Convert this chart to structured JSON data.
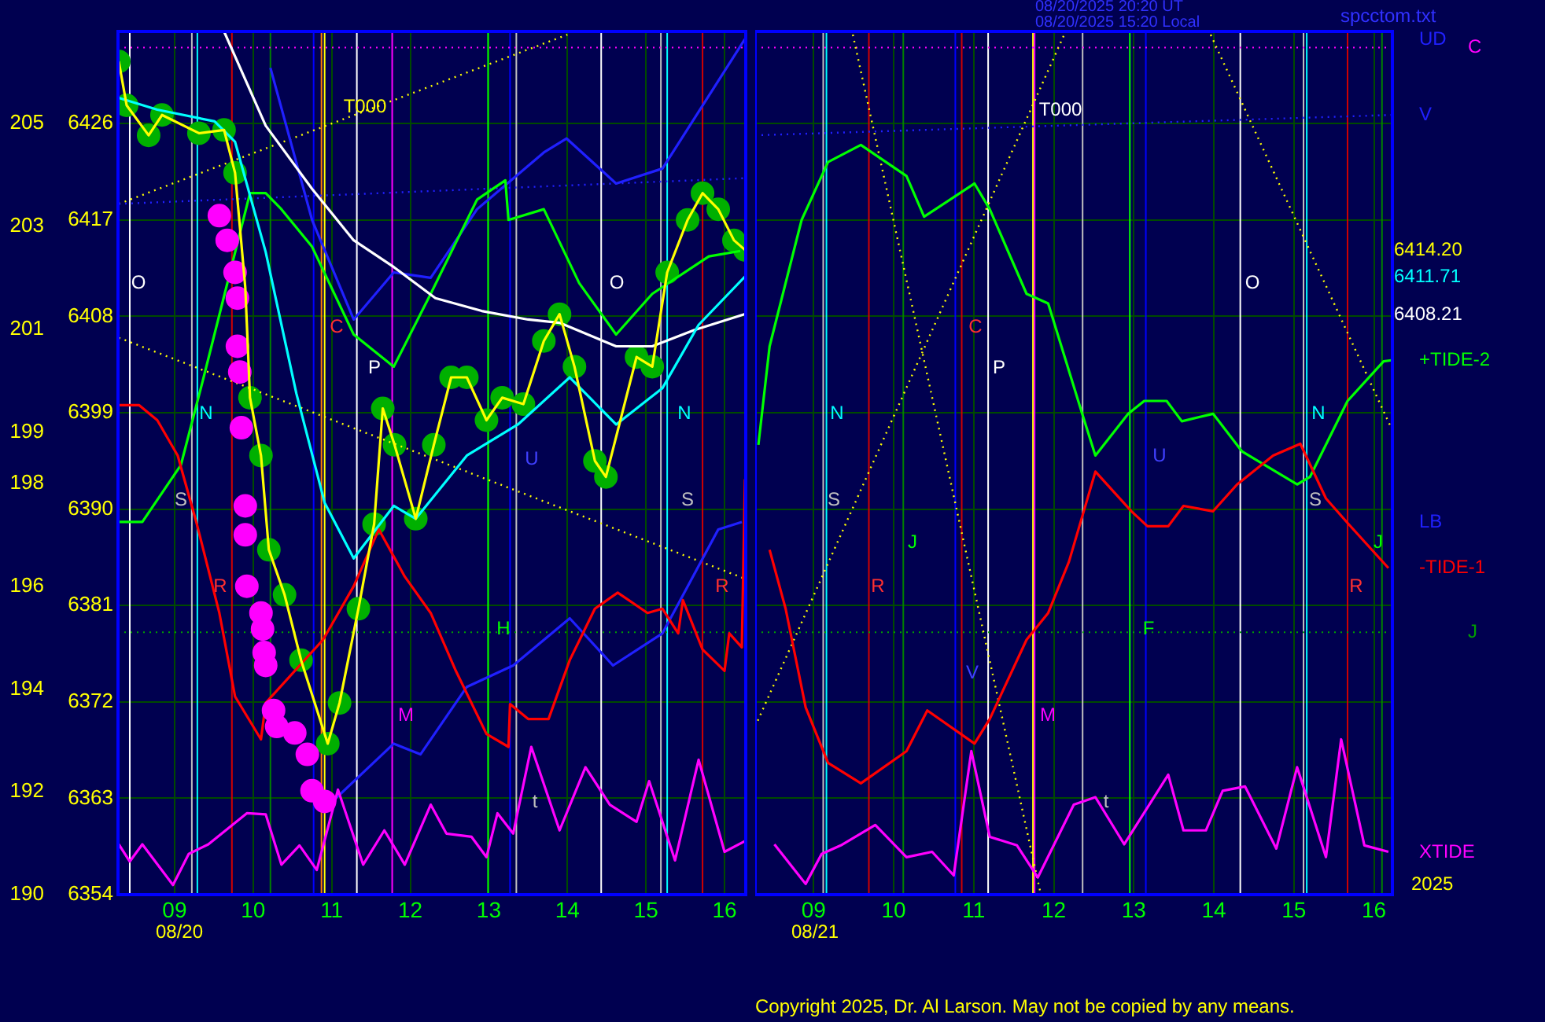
{
  "chart_data": [
    {
      "type": "line",
      "xlim": [
        8.28,
        16.27
      ],
      "ylim": [
        6354,
        6434.6
      ],
      "y2lim": [
        190,
        206.79
      ],
      "xticks": [
        {
          "value": 9,
          "label": "09"
        },
        {
          "value": 10,
          "label": "10"
        },
        {
          "value": 11,
          "label": "11"
        },
        {
          "value": 12,
          "label": "12"
        },
        {
          "value": 13,
          "label": "13"
        },
        {
          "value": 14,
          "label": "14"
        },
        {
          "value": 15,
          "label": "15"
        },
        {
          "value": 16,
          "label": "16"
        }
      ],
      "yticks": [
        6354,
        6363,
        6372,
        6381,
        6390,
        6399,
        6408,
        6417,
        6426
      ],
      "y2ticks": [
        190,
        192,
        194,
        196,
        198,
        199,
        201,
        203,
        205
      ],
      "grid": true,
      "series": [
        {
          "type": "scatter",
          "marker": "circle",
          "color": "#00b000",
          "x": [
            8.29,
            8.39,
            8.67,
            8.84,
            9.31,
            9.63,
            9.77,
            9.9,
            9.96,
            10.1,
            10.2,
            10.4,
            10.61,
            10.95,
            11.1,
            11.34,
            11.54,
            11.65,
            11.8,
            12.07,
            12.3,
            12.52,
            12.72,
            12.97,
            13.17,
            13.44,
            13.7,
            13.9,
            14.09,
            14.35,
            14.49,
            14.88,
            15.08,
            15.27,
            15.53,
            15.72,
            15.92,
            16.12,
            16.26
          ],
          "values": [
            6431.8,
            6427.7,
            6424.9,
            6426.8,
            6425.1,
            6425.4,
            6421.4,
            null,
            6400.4,
            6395,
            6386.2,
            6382,
            6375.9,
            6368.1,
            6371.9,
            6380.7,
            6388.6,
            6399.4,
            6396,
            6389.1,
            6396,
            6402.3,
            6402.3,
            6398.3,
            6400.4,
            6399.8,
            6405.7,
            6408.2,
            6403.3,
            6394.5,
            6393,
            6404.2,
            6403.3,
            6412.1,
            6417,
            6419.5,
            6418,
            6415.1,
            6414.2
          ]
        },
        {
          "marker": "none",
          "line_style": "dotted",
          "color": "#ffff00",
          "x": [
            8.29,
            14.0
          ],
          "values": [
            6418.5,
            6434.3
          ]
        },
        {
          "marker": "none",
          "line_style": "dotted",
          "color": "#ffff00",
          "x": [
            8.29,
            16.26
          ],
          "values": [
            6406,
            6383.5
          ]
        },
        {
          "marker": "none",
          "line_style": "dotted",
          "color": "#2020ff",
          "x": [
            8.29,
            16.26
          ],
          "values": [
            6418.5,
            6420.9
          ]
        },
        {
          "marker": "none",
          "color": "#2020ff",
          "name": "UD",
          "x": [
            10.22,
            10.75,
            11.28,
            11.79,
            12.26,
            12.85,
            13.7,
            13.99,
            14.62,
            15.21,
            16.26
          ],
          "values": [
            6431.2,
            6417,
            6407.7,
            6412.1,
            6411.6,
            6418,
            6423.3,
            6424.6,
            6420.4,
            6421.8,
            6433.9
          ]
        },
        {
          "marker": "none",
          "color": "#2020ff",
          "name": "LB",
          "x": [
            11.01,
            11.79,
            12.13,
            12.72,
            13.31,
            14.03,
            14.58,
            15.21,
            15.92,
            16.22
          ],
          "values": [
            6362.7,
            6368.1,
            6367.1,
            6373.4,
            6375.4,
            6379.8,
            6375.4,
            6378.4,
            6388.1,
            6388.8
          ]
        },
        {
          "marker": "none",
          "color": "#00ff00",
          "x": [
            8.29,
            8.59,
            9.08,
            9.37,
            9.96,
            10.16,
            10.36,
            10.75,
            11.28,
            11.79,
            12.26,
            12.85,
            13.21,
            13.25,
            13.7,
            14.15,
            14.62,
            15.08,
            15.8,
            16.2
          ],
          "values": [
            6388.8,
            6388.8,
            6394.1,
            6402.3,
            6419.5,
            6419.5,
            6418,
            6414.5,
            6406.3,
            6403.3,
            6410.1,
            6418.9,
            6420.7,
            6417,
            6418,
            6411.1,
            6406.3,
            6410.1,
            6413.6,
            6414.1
          ]
        },
        {
          "marker": "none",
          "color": "#ff0000",
          "x": [
            8.29,
            8.55,
            8.78,
            9.04,
            9.28,
            9.57,
            9.77,
            10.1,
            10.16,
            10.89,
            11.28,
            11.6,
            11.93,
            12.26,
            12.58,
            12.97,
            13.25,
            13.27,
            13.5,
            13.76,
            14.03,
            14.35,
            14.64,
            15.02,
            15.21,
            15.41,
            15.47,
            15.72,
            16.0,
            16.06,
            16.22,
            16.26
          ],
          "values": [
            6399.7,
            6399.7,
            6398.3,
            6395,
            6388.7,
            6380.3,
            6372.5,
            6368.5,
            6371.9,
            6377.8,
            6382.8,
            6388.1,
            6383.7,
            6380.3,
            6374.9,
            6369,
            6367.8,
            6371.8,
            6370.4,
            6370.4,
            6375.9,
            6380.7,
            6382.2,
            6380.3,
            6380.7,
            6378.4,
            6381.5,
            6376.9,
            6374.9,
            6378.4,
            6377.1,
            6392.8
          ]
        },
        {
          "marker": "none",
          "color": "#ff00ff",
          "x": [
            8.29,
            8.43,
            8.59,
            8.98,
            9.18,
            9.43,
            9.92,
            10.16,
            10.36,
            10.59,
            10.81,
            11.08,
            11.4,
            11.67,
            11.93,
            12.26,
            12.46,
            12.78,
            12.97,
            13.11,
            13.31,
            13.54,
            13.9,
            14.23,
            14.54,
            14.88,
            15.04,
            15.37,
            15.67,
            16.0,
            16.26
          ],
          "values": [
            6358.7,
            6357.1,
            6358.7,
            6354.9,
            6357.8,
            6358.7,
            6361.6,
            6361.5,
            6356.8,
            6358.6,
            6356.3,
            6363.8,
            6356.8,
            6360,
            6356.8,
            6362.4,
            6359.7,
            6359.4,
            6357.5,
            6361.6,
            6359.7,
            6367.8,
            6360,
            6365.9,
            6362.4,
            6360.8,
            6364.6,
            6357.2,
            6366.6,
            6358,
            6359
          ]
        },
        {
          "type": "scatter",
          "marker": "circle",
          "color": "#ff00ff",
          "x": [
            9.57,
            9.67,
            9.77,
            9.8,
            9.8,
            9.83,
            9.85,
            9.9,
            9.9,
            9.92,
            10.1,
            10.12,
            10.14,
            10.16,
            10.26,
            10.3,
            10.53,
            10.69,
            10.75,
            10.91
          ],
          "values": [
            6417.4,
            6415.1,
            6412.1,
            6409.7,
            6405.2,
            6402.8,
            6397.6,
            6390.3,
            6387.6,
            6382.8,
            6380.3,
            6378.8,
            6376.6,
            6375.4,
            6371.2,
            6369.7,
            6369.1,
            6367.1,
            6363.7,
            6362.7
          ]
        },
        {
          "marker": "none",
          "color": "#ffffff",
          "x": [
            9.63,
            10.16,
            10.75,
            11.28,
            11.79,
            12.32,
            12.91,
            13.5,
            13.9,
            14.62,
            15.08,
            15.61,
            16.26
          ],
          "values": [
            6434.6,
            6425.8,
            6419.9,
            6415.1,
            6412.6,
            6409.7,
            6408.5,
            6407.7,
            6407.4,
            6405.2,
            6405.2,
            6406.7,
            6408.21
          ]
        },
        {
          "marker": "none",
          "color": "#00ffff",
          "x": [
            8.29,
            8.78,
            9.51,
            9.77,
            10.16,
            10.55,
            10.91,
            11.28,
            11.79,
            12.07,
            12.72,
            13.37,
            14.03,
            14.62,
            15.21,
            15.67,
            16.26
          ],
          "values": [
            6428.4,
            6427.3,
            6426.2,
            6424.3,
            6414,
            6400.8,
            6390.6,
            6385.4,
            6390.3,
            6389.1,
            6395,
            6397.9,
            6402.3,
            6397.9,
            6401.3,
            6407.2,
            6411.71
          ]
        },
        {
          "marker": "none",
          "color": "#ffff00",
          "x": [
            8.29,
            8.39,
            8.67,
            8.84,
            9.31,
            9.63,
            9.77,
            9.9,
            9.96,
            10.1,
            10.2,
            10.4,
            10.61,
            10.95,
            11.1,
            11.34,
            11.54,
            11.65,
            11.8,
            12.07,
            12.3,
            12.52,
            12.72,
            12.97,
            13.17,
            13.44,
            13.7,
            13.9,
            14.09,
            14.35,
            14.49,
            14.88,
            15.08,
            15.27,
            15.53,
            15.72,
            15.92,
            16.12,
            16.26
          ],
          "values": [
            6431.8,
            6427.7,
            6424.9,
            6426.8,
            6425.1,
            6425.4,
            6421.4,
            6410.7,
            6400.4,
            6395,
            6386.2,
            6382,
            6375.9,
            6368.1,
            6371.9,
            6380.7,
            6388.6,
            6399.4,
            6396,
            6389.1,
            6396,
            6402.3,
            6402.3,
            6398.3,
            6400.4,
            6399.8,
            6405.7,
            6408.2,
            6403.3,
            6394.5,
            6393,
            6404.2,
            6403.3,
            6412.1,
            6417,
            6419.5,
            6418,
            6415.1,
            6414.2
          ]
        }
      ],
      "ref_lines": [
        {
          "axis": "x",
          "value": 8.43,
          "color": "#ffffff"
        },
        {
          "axis": "x",
          "value": 9.22,
          "color": "#c0c0c0"
        },
        {
          "axis": "x",
          "value": 9.29,
          "color": "#00ffff"
        },
        {
          "axis": "x",
          "value": 9.73,
          "color": "#d00000"
        },
        {
          "axis": "x",
          "value": 10.22,
          "color": "#008000"
        },
        {
          "axis": "x",
          "value": 10.77,
          "color": "#0000ff"
        },
        {
          "axis": "x",
          "value": 10.87,
          "color": "#ff8000"
        },
        {
          "axis": "x",
          "value": 10.91,
          "color": "#ffff00"
        },
        {
          "axis": "x",
          "value": 11.32,
          "color": "#ffffff"
        },
        {
          "axis": "x",
          "value": 11.77,
          "color": "#ff00ff"
        },
        {
          "axis": "x",
          "value": 12.99,
          "color": "#00ff00"
        },
        {
          "axis": "x",
          "value": 13.27,
          "color": "#0000ff"
        },
        {
          "axis": "x",
          "value": 13.35,
          "color": "#c0c0c0"
        },
        {
          "axis": "x",
          "value": 14.43,
          "color": "#ffffff"
        },
        {
          "axis": "x",
          "value": 15.19,
          "color": "#c0c0c0"
        },
        {
          "axis": "x",
          "value": 15.27,
          "color": "#00ffff"
        },
        {
          "axis": "x",
          "value": 15.72,
          "color": "#d00000"
        },
        {
          "axis": "y",
          "value": 6433.1,
          "color": "#ff00ff",
          "line_style": "dotted"
        },
        {
          "axis": "y",
          "value": 6378.5,
          "color": "#00a000",
          "line_style": "dotted"
        }
      ],
      "annotations": [
        "O",
        "N",
        "S",
        "R",
        "T000",
        "C",
        "P",
        "M",
        "H",
        "U",
        "t",
        "O",
        "N",
        "S",
        "R",
        "08/20",
        "6414.20",
        "6411.71",
        "6408.21"
      ]
    },
    {
      "type": "line",
      "tick_labels": "x",
      "xlim": [
        8.27,
        16.23
      ],
      "ylim": [
        6354,
        6434.6
      ],
      "xticks": [
        {
          "value": 9,
          "label": "09"
        },
        {
          "value": 10,
          "label": "10"
        },
        {
          "value": 11,
          "label": "11"
        },
        {
          "value": 12,
          "label": "12"
        },
        {
          "value": 13,
          "label": "13"
        },
        {
          "value": 14,
          "label": "14"
        },
        {
          "value": 15,
          "label": "15"
        },
        {
          "value": 16,
          "label": "16"
        }
      ],
      "yticks": [
        6354,
        6363,
        6372,
        6381,
        6390,
        6399,
        6408,
        6417,
        6426
      ],
      "grid": true,
      "series": [
        {
          "marker": "none",
          "line_style": "dotted",
          "color": "#ffff00",
          "x": [
            13.96,
            16.22
          ],
          "values": [
            6434.3,
            6397.5
          ]
        },
        {
          "marker": "none",
          "line_style": "dotted",
          "color": "#ffff00",
          "x": [
            8.27,
            12.13
          ],
          "values": [
            6369.7,
            6434.3
          ]
        },
        {
          "marker": "none",
          "line_style": "dotted",
          "color": "#ffff00",
          "x": [
            9.49,
            11.83
          ],
          "values": [
            6434.3,
            6354.3
          ]
        },
        {
          "marker": "none",
          "line_style": "dotted",
          "color": "#2020ff",
          "name": "V",
          "x": [
            8.27,
            16.22
          ],
          "values": [
            6424.9,
            6426.8
          ]
        },
        {
          "marker": "none",
          "color": "#00ff00",
          "name": "+TIDE-2",
          "x": [
            8.31,
            8.45,
            8.85,
            9.18,
            9.59,
            10.16,
            10.38,
            11.01,
            11.2,
            11.66,
            11.93,
            12.38,
            12.52,
            12.93,
            13.13,
            13.41,
            13.6,
            13.99,
            14.35,
            15.04,
            15.2,
            15.67,
            16.12,
            16.22
          ],
          "values": [
            6396,
            6405.2,
            6417,
            6422.4,
            6424,
            6421.1,
            6417.3,
            6420.4,
            6418,
            6410.1,
            6409.2,
            6398.3,
            6395,
            6398.9,
            6400.1,
            6400.1,
            6398.2,
            6398.9,
            6395.4,
            6392.3,
            6393,
            6400.1,
            6403.8,
            6403.9
          ]
        },
        {
          "marker": "none",
          "color": "#ff0000",
          "name": "-TIDE-1",
          "x": [
            8.45,
            8.65,
            8.9,
            9.18,
            9.59,
            10.16,
            10.42,
            11.01,
            11.2,
            11.66,
            11.93,
            12.19,
            12.52,
            12.97,
            13.17,
            13.43,
            13.62,
            13.99,
            14.29,
            14.74,
            15.08,
            15.4,
            15.67,
            16.18
          ],
          "values": [
            6386.2,
            6380.7,
            6371.5,
            6366.3,
            6364.4,
            6367.4,
            6371.2,
            6368.1,
            6370.4,
            6377.8,
            6380.3,
            6385.1,
            6393.5,
            6389.8,
            6388.4,
            6388.4,
            6390.3,
            6389.8,
            6392.3,
            6395,
            6396.1,
            6391,
            6388.7,
            6384.5
          ]
        },
        {
          "marker": "none",
          "color": "#ff00ff",
          "name": "XTIDE",
          "x": [
            8.51,
            8.9,
            9.1,
            9.34,
            9.77,
            10.16,
            10.48,
            10.75,
            10.97,
            11.2,
            11.54,
            11.8,
            12.25,
            12.52,
            12.88,
            13.43,
            13.62,
            13.9,
            14.11,
            14.39,
            14.78,
            15.04,
            15.4,
            15.59,
            15.88,
            16.18
          ],
          "values": [
            6358.7,
            6355,
            6357.8,
            6358.6,
            6360.5,
            6357.5,
            6358,
            6355.8,
            6367.4,
            6359.4,
            6358.6,
            6355.6,
            6362.4,
            6363.1,
            6358.7,
            6365.2,
            6360,
            6360,
            6363.7,
            6364.1,
            6358.3,
            6365.9,
            6357.5,
            6368.5,
            6358.6,
            6358
          ]
        }
      ],
      "ref_lines": [
        {
          "axis": "x",
          "value": 9.12,
          "color": "#c0c0c0"
        },
        {
          "axis": "x",
          "value": 9.16,
          "color": "#00ffff"
        },
        {
          "axis": "x",
          "value": 9.69,
          "color": "#d00000"
        },
        {
          "axis": "x",
          "value": 10.12,
          "color": "#008000"
        },
        {
          "axis": "x",
          "value": 10.77,
          "color": "#0000ff"
        },
        {
          "axis": "x",
          "value": 10.85,
          "color": "#d00000"
        },
        {
          "axis": "x",
          "value": 11.18,
          "color": "#ffffff"
        },
        {
          "axis": "x",
          "value": 11.74,
          "color": "#ffff00"
        },
        {
          "axis": "x",
          "value": 11.76,
          "color": "#ff00ff"
        },
        {
          "axis": "x",
          "value": 12.36,
          "color": "#c0c0c0"
        },
        {
          "axis": "x",
          "value": 12.95,
          "color": "#00ff00"
        },
        {
          "axis": "x",
          "value": 13.15,
          "color": "#0000ff"
        },
        {
          "axis": "x",
          "value": 14.33,
          "color": "#ffffff"
        },
        {
          "axis": "x",
          "value": 15.12,
          "color": "#c0c0c0"
        },
        {
          "axis": "x",
          "value": 15.16,
          "color": "#00ffff"
        },
        {
          "axis": "x",
          "value": 15.67,
          "color": "#d00000"
        },
        {
          "axis": "x",
          "value": 16.1,
          "color": "#008000"
        },
        {
          "axis": "y",
          "value": 6433.1,
          "label": "C",
          "color": "#ff00ff",
          "line_style": "dotted"
        },
        {
          "axis": "y",
          "value": 6378.5,
          "label": "J",
          "color": "#00a000",
          "line_style": "dotted"
        }
      ],
      "annotations": [
        "N",
        "S",
        "R",
        "J",
        "V",
        "C",
        "P",
        "T000",
        "M",
        "t",
        "F",
        "U",
        "O",
        "N",
        "S",
        "R",
        "J",
        "08/21",
        "08/20/2025 20:20 UT",
        "08/20/2025 15:20 Local",
        "spcctom.txt",
        "2025",
        "Copyright 2025, Dr. Al Larson. May not be copied by any means."
      ]
    }
  ]
}
